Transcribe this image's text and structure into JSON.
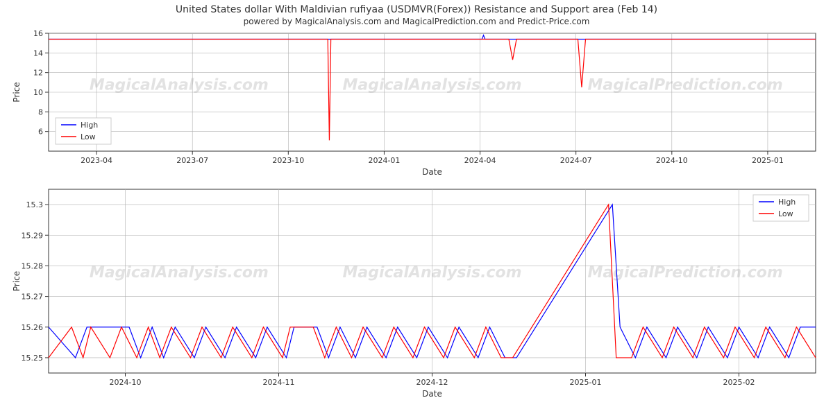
{
  "header": {
    "title": "United States dollar With Maldivian rufiyaa (USDMVR(Forex)) Resistance and Support area (Feb 14)",
    "subtitle": "powered by MagicalAnalysis.com and MagicalPrediction.com and Predict-Price.com"
  },
  "legend": {
    "high": "High",
    "low": "Low"
  },
  "watermark": {
    "text1": "MagicalAnalysis.com",
    "text2": "MagicalPrediction.com"
  },
  "chart_top": {
    "type": "line",
    "xlabel": "Date",
    "ylabel": "Price",
    "ylim": [
      4,
      16
    ],
    "yticks": [
      6,
      8,
      10,
      12,
      14,
      16
    ],
    "xticks": [
      "2023-04",
      "2023-07",
      "2023-10",
      "2024-01",
      "2024-04",
      "2024-07",
      "2024-10",
      "2025-01"
    ],
    "grid_color": "#b0b0b0",
    "background_color": "#ffffff",
    "series": [
      {
        "name": "High",
        "color": "#0000ff",
        "line_width": 1.2,
        "data": [
          {
            "x": 0.0,
            "y": 15.4
          },
          {
            "x": 0.565,
            "y": 15.4
          },
          {
            "x": 0.567,
            "y": 15.8
          },
          {
            "x": 0.569,
            "y": 15.4
          },
          {
            "x": 1.0,
            "y": 15.4
          }
        ]
      },
      {
        "name": "Low",
        "color": "#ff0000",
        "line_width": 1.2,
        "data": [
          {
            "x": 0.0,
            "y": 15.4
          },
          {
            "x": 0.364,
            "y": 15.4
          },
          {
            "x": 0.366,
            "y": 5.1
          },
          {
            "x": 0.368,
            "y": 15.4
          },
          {
            "x": 0.6,
            "y": 15.4
          },
          {
            "x": 0.605,
            "y": 13.3
          },
          {
            "x": 0.61,
            "y": 15.4
          },
          {
            "x": 0.69,
            "y": 15.4
          },
          {
            "x": 0.695,
            "y": 10.5
          },
          {
            "x": 0.7,
            "y": 15.4
          },
          {
            "x": 1.0,
            "y": 15.4
          }
        ]
      }
    ],
    "legend_pos": "upper-left"
  },
  "chart_bottom": {
    "type": "line",
    "xlabel": "Date",
    "ylabel": "Price",
    "ylim": [
      15.245,
      15.305
    ],
    "yticks": [
      15.25,
      15.26,
      15.27,
      15.28,
      15.29,
      15.3
    ],
    "xticks": [
      "2024-10",
      "2024-11",
      "2024-12",
      "2025-01",
      "2025-02"
    ],
    "grid_color": "#b0b0b0",
    "background_color": "#ffffff",
    "series": [
      {
        "name": "High",
        "color": "#0000ff",
        "line_width": 1.2,
        "data": [
          {
            "x": 0.0,
            "y": 15.26
          },
          {
            "x": 0.035,
            "y": 15.25
          },
          {
            "x": 0.05,
            "y": 15.26
          },
          {
            "x": 0.075,
            "y": 15.26
          },
          {
            "x": 0.085,
            "y": 15.26
          },
          {
            "x": 0.105,
            "y": 15.26
          },
          {
            "x": 0.12,
            "y": 15.25
          },
          {
            "x": 0.135,
            "y": 15.26
          },
          {
            "x": 0.15,
            "y": 15.25
          },
          {
            "x": 0.165,
            "y": 15.26
          },
          {
            "x": 0.19,
            "y": 15.25
          },
          {
            "x": 0.205,
            "y": 15.26
          },
          {
            "x": 0.23,
            "y": 15.25
          },
          {
            "x": 0.245,
            "y": 15.26
          },
          {
            "x": 0.27,
            "y": 15.25
          },
          {
            "x": 0.285,
            "y": 15.26
          },
          {
            "x": 0.31,
            "y": 15.25
          },
          {
            "x": 0.32,
            "y": 15.26
          },
          {
            "x": 0.35,
            "y": 15.26
          },
          {
            "x": 0.365,
            "y": 15.25
          },
          {
            "x": 0.38,
            "y": 15.26
          },
          {
            "x": 0.4,
            "y": 15.25
          },
          {
            "x": 0.415,
            "y": 15.26
          },
          {
            "x": 0.44,
            "y": 15.25
          },
          {
            "x": 0.455,
            "y": 15.26
          },
          {
            "x": 0.48,
            "y": 15.25
          },
          {
            "x": 0.495,
            "y": 15.26
          },
          {
            "x": 0.52,
            "y": 15.25
          },
          {
            "x": 0.535,
            "y": 15.26
          },
          {
            "x": 0.56,
            "y": 15.25
          },
          {
            "x": 0.575,
            "y": 15.26
          },
          {
            "x": 0.595,
            "y": 15.25
          },
          {
            "x": 0.61,
            "y": 15.25
          },
          {
            "x": 0.735,
            "y": 15.3
          },
          {
            "x": 0.745,
            "y": 15.26
          },
          {
            "x": 0.765,
            "y": 15.25
          },
          {
            "x": 0.78,
            "y": 15.26
          },
          {
            "x": 0.805,
            "y": 15.25
          },
          {
            "x": 0.82,
            "y": 15.26
          },
          {
            "x": 0.845,
            "y": 15.25
          },
          {
            "x": 0.86,
            "y": 15.26
          },
          {
            "x": 0.885,
            "y": 15.25
          },
          {
            "x": 0.9,
            "y": 15.26
          },
          {
            "x": 0.925,
            "y": 15.25
          },
          {
            "x": 0.94,
            "y": 15.26
          },
          {
            "x": 0.965,
            "y": 15.25
          },
          {
            "x": 0.98,
            "y": 15.26
          },
          {
            "x": 1.0,
            "y": 15.26
          }
        ]
      },
      {
        "name": "Low",
        "color": "#ff0000",
        "line_width": 1.2,
        "data": [
          {
            "x": 0.0,
            "y": 15.25
          },
          {
            "x": 0.03,
            "y": 15.26
          },
          {
            "x": 0.045,
            "y": 15.25
          },
          {
            "x": 0.055,
            "y": 15.26
          },
          {
            "x": 0.08,
            "y": 15.25
          },
          {
            "x": 0.095,
            "y": 15.26
          },
          {
            "x": 0.115,
            "y": 15.25
          },
          {
            "x": 0.13,
            "y": 15.26
          },
          {
            "x": 0.145,
            "y": 15.25
          },
          {
            "x": 0.16,
            "y": 15.26
          },
          {
            "x": 0.185,
            "y": 15.25
          },
          {
            "x": 0.2,
            "y": 15.26
          },
          {
            "x": 0.225,
            "y": 15.25
          },
          {
            "x": 0.24,
            "y": 15.26
          },
          {
            "x": 0.265,
            "y": 15.25
          },
          {
            "x": 0.28,
            "y": 15.26
          },
          {
            "x": 0.305,
            "y": 15.25
          },
          {
            "x": 0.315,
            "y": 15.26
          },
          {
            "x": 0.345,
            "y": 15.26
          },
          {
            "x": 0.36,
            "y": 15.25
          },
          {
            "x": 0.375,
            "y": 15.26
          },
          {
            "x": 0.395,
            "y": 15.25
          },
          {
            "x": 0.41,
            "y": 15.26
          },
          {
            "x": 0.435,
            "y": 15.25
          },
          {
            "x": 0.45,
            "y": 15.26
          },
          {
            "x": 0.475,
            "y": 15.25
          },
          {
            "x": 0.49,
            "y": 15.26
          },
          {
            "x": 0.515,
            "y": 15.25
          },
          {
            "x": 0.53,
            "y": 15.26
          },
          {
            "x": 0.555,
            "y": 15.25
          },
          {
            "x": 0.57,
            "y": 15.26
          },
          {
            "x": 0.59,
            "y": 15.25
          },
          {
            "x": 0.605,
            "y": 15.25
          },
          {
            "x": 0.73,
            "y": 15.3
          },
          {
            "x": 0.74,
            "y": 15.25
          },
          {
            "x": 0.76,
            "y": 15.25
          },
          {
            "x": 0.775,
            "y": 15.26
          },
          {
            "x": 0.8,
            "y": 15.25
          },
          {
            "x": 0.815,
            "y": 15.26
          },
          {
            "x": 0.84,
            "y": 15.25
          },
          {
            "x": 0.855,
            "y": 15.26
          },
          {
            "x": 0.88,
            "y": 15.25
          },
          {
            "x": 0.895,
            "y": 15.26
          },
          {
            "x": 0.92,
            "y": 15.25
          },
          {
            "x": 0.935,
            "y": 15.26
          },
          {
            "x": 0.96,
            "y": 15.25
          },
          {
            "x": 0.975,
            "y": 15.26
          },
          {
            "x": 1.0,
            "y": 15.25
          }
        ]
      }
    ],
    "legend_pos": "upper-right"
  }
}
